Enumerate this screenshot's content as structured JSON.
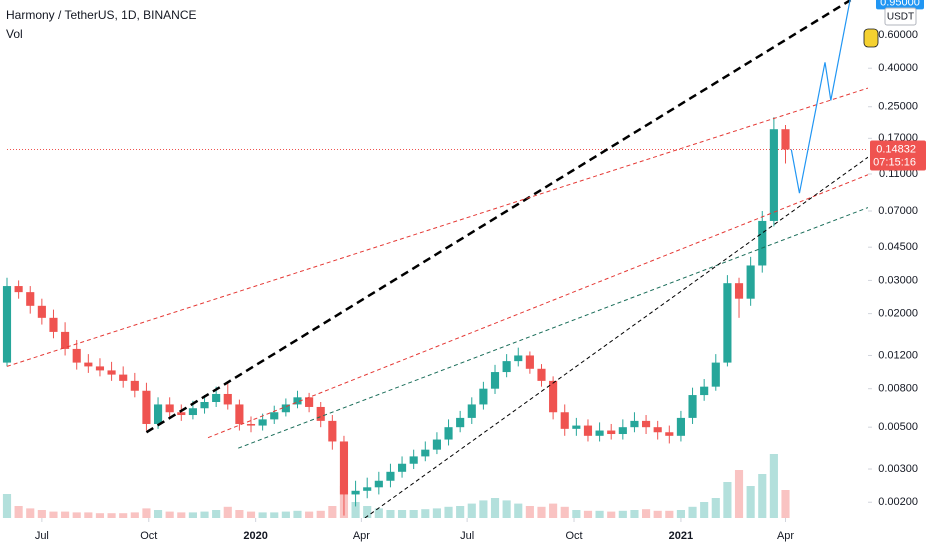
{
  "chart_data": {
    "type": "candlestick",
    "title": "Harmony / TetherUS, 1D, BINANCE",
    "subtitle": "Vol",
    "log_scale": true,
    "grid": false,
    "up_color": "#26a69a",
    "down_color": "#ef5350",
    "xlim": [
      0,
      741
    ],
    "xticks": [
      {
        "value": 30,
        "label": "Jul"
      },
      {
        "value": 122,
        "label": "Oct"
      },
      {
        "value": 214,
        "label": "2020"
      },
      {
        "value": 305,
        "label": "Apr"
      },
      {
        "value": 396,
        "label": "Jul"
      },
      {
        "value": 488,
        "label": "Oct"
      },
      {
        "value": 580,
        "label": "2021"
      },
      {
        "value": 670,
        "label": "Apr"
      }
    ],
    "ylim": [
      0.00165,
      0.92
    ],
    "yticks": [
      {
        "value": 0.6,
        "label": "0.60000"
      },
      {
        "value": 0.4,
        "label": "0.40000"
      },
      {
        "value": 0.25,
        "label": "0.25000"
      },
      {
        "value": 0.17,
        "label": "0.17000"
      },
      {
        "value": 0.11,
        "label": "0.11000"
      },
      {
        "value": 0.07,
        "label": "0.07000"
      },
      {
        "value": 0.045,
        "label": "0.04500"
      },
      {
        "value": 0.03,
        "label": "0.03000"
      },
      {
        "value": 0.02,
        "label": "0.02000"
      },
      {
        "value": 0.012,
        "label": "0.01200"
      },
      {
        "value": 0.008,
        "label": "0.00800"
      },
      {
        "value": 0.005,
        "label": "0.00500"
      },
      {
        "value": 0.003,
        "label": "0.00300"
      },
      {
        "value": 0.002,
        "label": "0.00200"
      }
    ],
    "x": [
      0,
      10,
      20,
      30,
      40,
      50,
      60,
      70,
      80,
      90,
      100,
      110,
      120,
      130,
      140,
      150,
      160,
      170,
      180,
      190,
      200,
      210,
      220,
      230,
      240,
      250,
      260,
      270,
      280,
      290,
      300,
      310,
      320,
      330,
      340,
      350,
      360,
      370,
      380,
      390,
      400,
      410,
      420,
      430,
      440,
      450,
      460,
      470,
      480,
      490,
      500,
      510,
      520,
      530,
      540,
      550,
      560,
      570,
      580,
      590,
      600,
      610,
      620,
      630,
      640,
      650,
      660,
      670
    ],
    "open": [
      0.011,
      0.028,
      0.026,
      0.022,
      0.019,
      0.016,
      0.013,
      0.011,
      0.0105,
      0.01,
      0.0095,
      0.0088,
      0.0078,
      0.0052,
      0.0066,
      0.006,
      0.0058,
      0.0063,
      0.0068,
      0.0075,
      0.0066,
      0.0052,
      0.0051,
      0.0055,
      0.006,
      0.0066,
      0.0072,
      0.0064,
      0.0054,
      0.0042,
      0.0022,
      0.0023,
      0.0024,
      0.0026,
      0.0029,
      0.0032,
      0.0035,
      0.0038,
      0.0043,
      0.005,
      0.0056,
      0.0066,
      0.008,
      0.0098,
      0.0112,
      0.012,
      0.0102,
      0.0088,
      0.006,
      0.0049,
      0.0051,
      0.0045,
      0.0048,
      0.0046,
      0.005,
      0.0054,
      0.005,
      0.0047,
      0.0045,
      0.0056,
      0.0074,
      0.0082,
      0.011,
      0.029,
      0.024,
      0.036,
      0.062,
      0.19
    ],
    "high": [
      0.031,
      0.03,
      0.028,
      0.024,
      0.021,
      0.018,
      0.0145,
      0.0122,
      0.0116,
      0.0111,
      0.0105,
      0.0097,
      0.0086,
      0.0072,
      0.0072,
      0.0066,
      0.0069,
      0.0074,
      0.0082,
      0.0086,
      0.007,
      0.0057,
      0.0059,
      0.0065,
      0.0071,
      0.0078,
      0.0076,
      0.0068,
      0.0058,
      0.0045,
      0.0026,
      0.0027,
      0.0029,
      0.0032,
      0.0035,
      0.0038,
      0.0042,
      0.0047,
      0.0055,
      0.0061,
      0.0072,
      0.0087,
      0.0107,
      0.0122,
      0.0132,
      0.0126,
      0.0108,
      0.0093,
      0.0066,
      0.0056,
      0.0055,
      0.0053,
      0.0052,
      0.0055,
      0.006,
      0.0058,
      0.0054,
      0.0051,
      0.0061,
      0.0081,
      0.009,
      0.0122,
      0.032,
      0.031,
      0.04,
      0.07,
      0.22,
      0.2
    ],
    "low": [
      0.0105,
      0.024,
      0.02,
      0.0175,
      0.0148,
      0.012,
      0.0101,
      0.0097,
      0.0093,
      0.0088,
      0.0081,
      0.0072,
      0.0048,
      0.0049,
      0.0056,
      0.0054,
      0.0055,
      0.0059,
      0.0064,
      0.0062,
      0.0048,
      0.0047,
      0.0048,
      0.0052,
      0.0057,
      0.0063,
      0.006,
      0.005,
      0.0038,
      0.0017,
      0.0019,
      0.0021,
      0.0022,
      0.0024,
      0.0027,
      0.003,
      0.0033,
      0.0036,
      0.004,
      0.0047,
      0.0052,
      0.0062,
      0.0075,
      0.0092,
      0.0105,
      0.0096,
      0.0082,
      0.0055,
      0.0045,
      0.0045,
      0.0042,
      0.0042,
      0.0043,
      0.0043,
      0.0047,
      0.0046,
      0.0043,
      0.0041,
      0.0042,
      0.0052,
      0.0069,
      0.0078,
      0.0105,
      0.019,
      0.022,
      0.033,
      0.058,
      0.125
    ],
    "close": [
      0.028,
      0.026,
      0.022,
      0.019,
      0.016,
      0.013,
      0.011,
      0.0105,
      0.01,
      0.0095,
      0.0088,
      0.0078,
      0.0052,
      0.0066,
      0.006,
      0.0058,
      0.0063,
      0.0068,
      0.0075,
      0.0066,
      0.0052,
      0.0051,
      0.0055,
      0.006,
      0.0066,
      0.0072,
      0.0064,
      0.0054,
      0.0042,
      0.0022,
      0.0023,
      0.0024,
      0.0026,
      0.0029,
      0.0032,
      0.0035,
      0.0038,
      0.0043,
      0.005,
      0.0056,
      0.0066,
      0.008,
      0.0098,
      0.0112,
      0.012,
      0.0102,
      0.0088,
      0.006,
      0.0049,
      0.0051,
      0.0045,
      0.0048,
      0.0046,
      0.005,
      0.0054,
      0.005,
      0.0047,
      0.0045,
      0.0056,
      0.0074,
      0.0082,
      0.011,
      0.029,
      0.024,
      0.036,
      0.062,
      0.19,
      0.14832
    ],
    "volume": [
      30,
      15,
      12,
      10,
      8,
      8,
      7,
      7,
      6,
      6,
      6,
      7,
      12,
      10,
      8,
      7,
      7,
      8,
      10,
      14,
      10,
      8,
      7,
      7,
      8,
      9,
      8,
      9,
      15,
      40,
      20,
      15,
      12,
      10,
      10,
      10,
      11,
      12,
      14,
      15,
      18,
      22,
      25,
      22,
      18,
      15,
      14,
      18,
      14,
      10,
      9,
      9,
      8,
      9,
      10,
      11,
      9,
      9,
      10,
      14,
      20,
      25,
      45,
      60,
      40,
      55,
      80,
      35
    ],
    "current_price": 0.14832,
    "countdown": "07:15:16",
    "currency": "USDT",
    "target_label": {
      "value": 0.95,
      "label": "0.95000"
    },
    "drawings": [
      {
        "color": "#000000",
        "style": "dashed",
        "width": 2.5,
        "points": [
          [
            120,
            0.0047
          ],
          [
            726,
            0.92
          ]
        ]
      },
      {
        "color": "#e53935",
        "style": "dashed",
        "width": 1,
        "points": [
          [
            0,
            0.0105
          ],
          [
            741,
            0.314
          ]
        ]
      },
      {
        "color": "#e53935",
        "style": "dashed",
        "width": 1,
        "points": [
          [
            173,
            0.0044
          ],
          [
            741,
            0.109
          ]
        ]
      },
      {
        "color": "#1b6e5a",
        "style": "dashed",
        "width": 1,
        "points": [
          [
            199,
            0.00387
          ],
          [
            741,
            0.073
          ]
        ]
      },
      {
        "color": "#000000",
        "style": "dashed",
        "width": 1,
        "points": [
          [
            308,
            0.00165
          ],
          [
            741,
            0.135
          ]
        ]
      },
      {
        "color": "#2196f3",
        "style": "solid",
        "width": 1.2,
        "points": [
          [
            675,
            0.14832
          ],
          [
            682,
            0.087
          ],
          [
            704,
            0.43
          ],
          [
            709,
            0.27
          ],
          [
            726,
            0.95
          ]
        ]
      }
    ]
  }
}
